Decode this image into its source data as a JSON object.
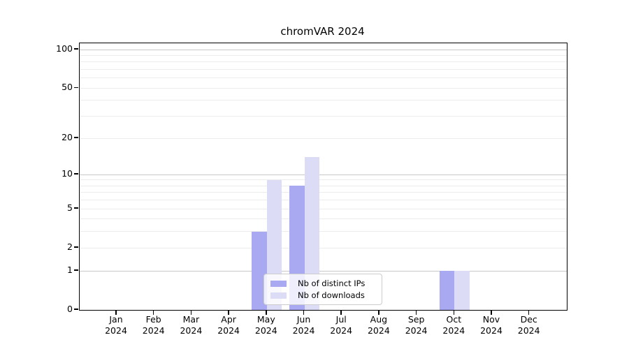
{
  "chart_data": {
    "type": "bar",
    "title": "chromVAR 2024",
    "categories": [
      "Jan 2024",
      "Feb 2024",
      "Mar 2024",
      "Apr 2024",
      "May 2024",
      "Jun 2024",
      "Jul 2024",
      "Aug 2024",
      "Sep 2024",
      "Oct 2024",
      "Nov 2024",
      "Dec 2024"
    ],
    "series": [
      {
        "name": "Nb of distinct IPs",
        "color": "#a9a9f2",
        "values": [
          0,
          0,
          0,
          0,
          3,
          8,
          0,
          0,
          0,
          1,
          0,
          0
        ]
      },
      {
        "name": "Nb of downloads",
        "color": "#dcdcf6",
        "values": [
          0,
          0,
          0,
          0,
          9,
          14,
          0,
          0,
          0,
          1,
          0,
          0
        ]
      }
    ],
    "xlabel": "",
    "ylabel": "",
    "yscale": "log1p",
    "ylim": [
      0,
      112
    ],
    "yticks": [
      0,
      1,
      2,
      5,
      10,
      20,
      50,
      100
    ],
    "major_gridlines": [
      1,
      10,
      100
    ],
    "minor_gridlines": [
      2,
      3,
      4,
      5,
      6,
      7,
      8,
      9,
      20,
      30,
      40,
      50,
      60,
      70,
      80,
      90
    ],
    "grid": true,
    "legend_position": "lower center"
  },
  "colors": {
    "bar_distinct_ips": "#a9a9f2",
    "bar_downloads": "#dcdcf6",
    "grid_major": "#c8c8c8",
    "grid_minor": "#ececec",
    "axis": "#000000",
    "legend_border": "#cccccc"
  }
}
